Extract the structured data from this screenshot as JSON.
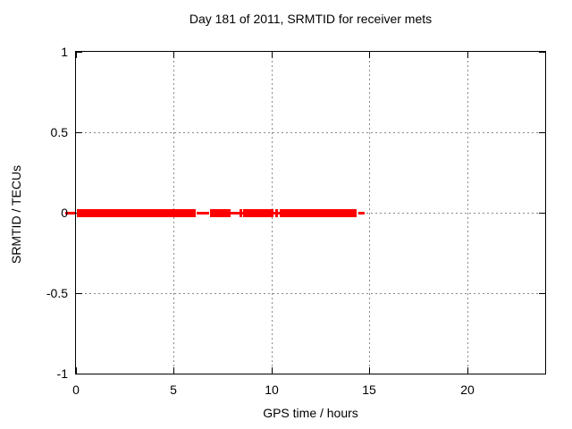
{
  "chart_data": {
    "type": "scatter",
    "title": "Day 181 of 2011, SRMTID for receiver mets",
    "xlabel": "GPS time / hours",
    "ylabel": "SRMTID / TECUs",
    "xlim": [
      0,
      24
    ],
    "ylim": [
      -1,
      1
    ],
    "xticks": [
      0,
      5,
      10,
      15,
      20
    ],
    "xtick_labels": [
      "0",
      "5",
      "10",
      "15",
      "20"
    ],
    "yticks": [
      1,
      0.5,
      0,
      -0.5,
      -1
    ],
    "ytick_labels": [
      "1",
      "0.5",
      "0",
      "-0.5",
      "-1"
    ],
    "grid": true,
    "grid_color": "#8a8a8a",
    "legend": "none",
    "series": [
      {
        "name": "SRMTID",
        "color": "#ff0000",
        "marker": "plus",
        "y_value": 0,
        "dense_segments_hours": [
          [
            0.05,
            6.12
          ],
          [
            6.85,
            7.89
          ],
          [
            8.57,
            10.09
          ],
          [
            10.41,
            14.34
          ]
        ],
        "isolated_points_hours": [
          {
            "t": 6.32,
            "shape": "dash"
          },
          {
            "t": 6.65,
            "shape": "dash"
          },
          {
            "t": 8.06,
            "shape": "dash"
          },
          {
            "t": 8.4,
            "shape": "plus"
          },
          {
            "t": 10.25,
            "shape": "plus"
          },
          {
            "t": 14.57,
            "shape": "dash"
          }
        ],
        "edge_dash_left_of_axis": true
      }
    ]
  }
}
